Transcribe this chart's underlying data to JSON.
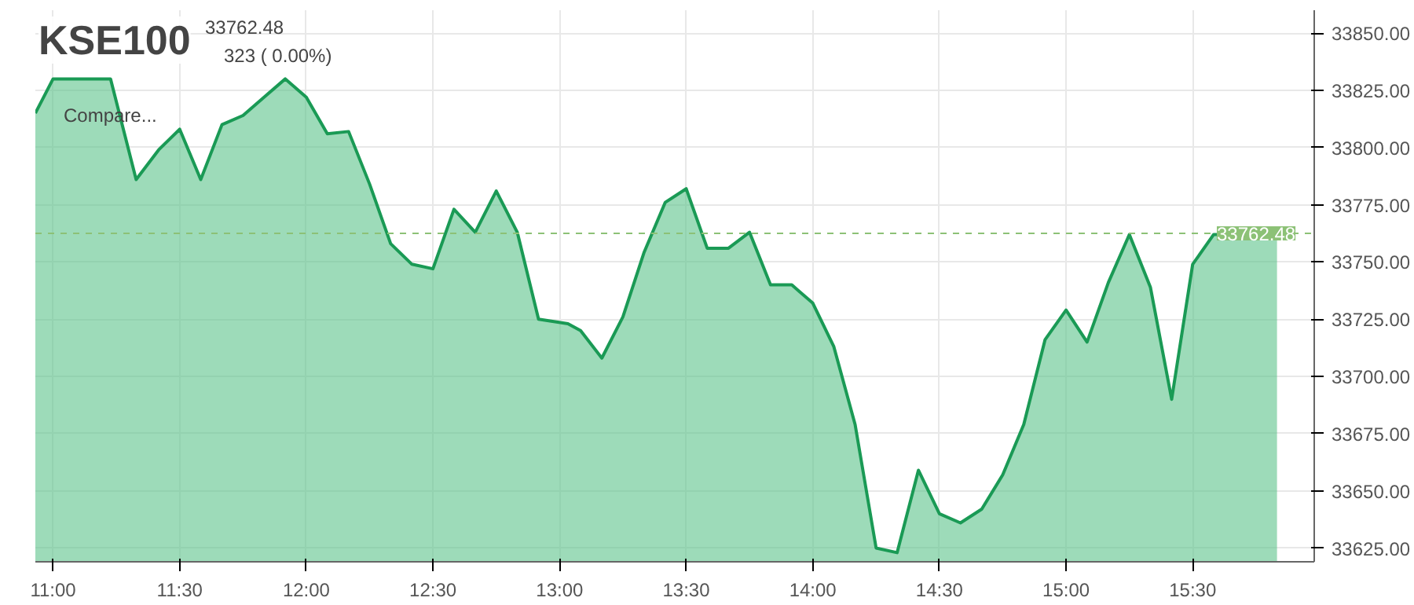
{
  "chart_data": {
    "type": "area",
    "title": "KSE100",
    "subtitle": "33762.48",
    "annotations": [
      "323 ( 0.00%)",
      "Compare..."
    ],
    "x": [
      10.93,
      11.0,
      11.227,
      11.328,
      11.417,
      11.5,
      11.583,
      11.667,
      11.75,
      11.833,
      11.917,
      12.0,
      12.083,
      12.167,
      12.25,
      12.333,
      12.417,
      12.5,
      12.583,
      12.667,
      12.75,
      12.833,
      12.917,
      13.033,
      13.083,
      13.167,
      13.25,
      13.333,
      13.417,
      13.5,
      13.583,
      13.667,
      13.75,
      13.833,
      13.917,
      14.0,
      14.083,
      14.167,
      14.25,
      14.333,
      14.417,
      14.5,
      14.583,
      14.667,
      14.75,
      14.833,
      14.917,
      15.0,
      15.083,
      15.167,
      15.25,
      15.333,
      15.417,
      15.5,
      15.583,
      15.833
    ],
    "series": [
      {
        "color": "#1a9a55",
        "values": [
          33815,
          33830,
          33830,
          33786,
          33799,
          33808,
          33786,
          33810,
          33814,
          33822,
          33830,
          33822,
          33806,
          33807,
          33784,
          33758,
          33749,
          33747,
          33773,
          33763,
          33781,
          33763,
          33725,
          33723,
          33720,
          33708,
          33726,
          33754,
          33776,
          33782,
          33756,
          33756,
          33763,
          33740,
          33740,
          33732,
          33713,
          33679,
          33625,
          33623,
          33659,
          33640,
          33636,
          33642,
          33657,
          33679,
          33716,
          33729,
          33715,
          33741,
          33762,
          33739,
          33690,
          33749,
          33762,
          33762
        ]
      }
    ],
    "xlim": [
      10.93,
      15.98
    ],
    "ylim": [
      33619,
      33860
    ],
    "xticks": [
      {
        "value": 11,
        "label": "11:00"
      },
      {
        "value": 11.5,
        "label": "11:30"
      },
      {
        "value": 12,
        "label": "12:00"
      },
      {
        "value": 12.5,
        "label": "12:30"
      },
      {
        "value": 13,
        "label": "13:00"
      },
      {
        "value": 13.5,
        "label": "13:30"
      },
      {
        "value": 14,
        "label": "14:00"
      },
      {
        "value": 14.5,
        "label": "14:30"
      },
      {
        "value": 15,
        "label": "15:00"
      },
      {
        "value": 15.5,
        "label": "15:30"
      }
    ],
    "yticks": [
      {
        "value": 33625,
        "label": "33625.00"
      },
      {
        "value": 33650,
        "label": "33650.00"
      },
      {
        "value": 33675,
        "label": "33675.00"
      },
      {
        "value": 33700,
        "label": "33700.00"
      },
      {
        "value": 33725,
        "label": "33725.00"
      },
      {
        "value": 33750,
        "label": "33750.00"
      },
      {
        "value": 33775,
        "label": "33775.00"
      },
      {
        "value": 33800,
        "label": "33800.00"
      },
      {
        "value": 33825,
        "label": "33825.00"
      },
      {
        "value": 33850,
        "label": "33850.00"
      }
    ],
    "ref_lines": [
      {
        "axis": "y",
        "value": 33762.48,
        "label": "33762.48",
        "color": "#8cc176",
        "line_style": "dashed"
      }
    ],
    "grid": true
  }
}
